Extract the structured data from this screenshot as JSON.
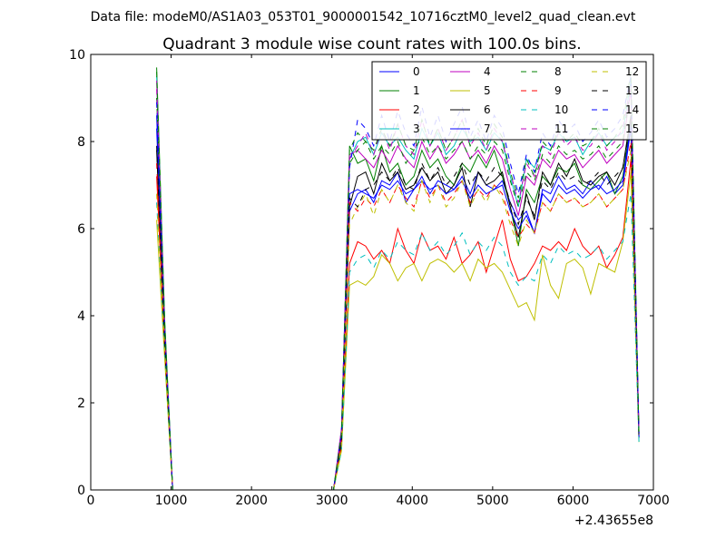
{
  "page": {
    "suptitle": "Data file: modeM0/AS1A03_053T01_9000001542_10716cztM0_level2_quad_clean.evt"
  },
  "chart_data": {
    "type": "line",
    "title": "Quadrant 3 module wise count rates with 100.0s bins.",
    "xlabel": "",
    "ylabel": "",
    "x_offset_label": "+2.43655e8",
    "xlim": [
      0,
      7000
    ],
    "ylim": [
      0,
      10
    ],
    "x_ticks": [
      0,
      1000,
      2000,
      3000,
      4000,
      5000,
      6000,
      7000
    ],
    "y_ticks": [
      0,
      2,
      4,
      6,
      8,
      10
    ],
    "grid": false,
    "legend": {
      "placement": "top-right",
      "columns": 4
    },
    "x": [
      820,
      920,
      1020,
      1120,
      1220,
      1320,
      1420,
      1520,
      1620,
      1720,
      1820,
      1920,
      2020,
      2120,
      2220,
      2320,
      2420,
      2520,
      2620,
      2720,
      2820,
      2920,
      3020,
      3120,
      3220,
      3320,
      3420,
      3520,
      3620,
      3720,
      3820,
      3920,
      4020,
      4120,
      4220,
      4320,
      4420,
      4520,
      4620,
      4720,
      4820,
      4920,
      5020,
      5120,
      5220,
      5320,
      5420,
      5520,
      5620,
      5720,
      5820,
      5920,
      6020,
      6120,
      6220,
      6320,
      6420,
      6520,
      6620,
      6720,
      6820
    ],
    "series": [
      {
        "name": "0",
        "color": "#0000ff",
        "dash": "solid",
        "values": [
          8.3,
          3.5,
          0,
          0,
          0,
          0,
          0,
          0,
          0,
          0,
          0,
          0,
          0,
          0,
          0,
          0,
          0,
          0,
          0,
          0,
          0,
          0,
          0,
          1.2,
          6.4,
          6.8,
          6.9,
          6.6,
          7.1,
          7.0,
          7.3,
          6.6,
          6.9,
          7.2,
          6.8,
          7.1,
          7.0,
          6.9,
          7.2,
          6.8,
          7.3,
          7.0,
          6.9,
          7.1,
          6.6,
          6.2,
          6.4,
          5.9,
          6.9,
          6.8,
          7.2,
          6.9,
          7.0,
          6.8,
          7.1,
          6.9,
          7.2,
          6.8,
          7.0,
          8.3,
          1.2
        ]
      },
      {
        "name": "1",
        "color": "#008000",
        "dash": "solid",
        "values": [
          9.7,
          3.9,
          0,
          0,
          0,
          0,
          0,
          0,
          0,
          0,
          0,
          0,
          0,
          0,
          0,
          0,
          0,
          0,
          0,
          0,
          0,
          0,
          0,
          1.3,
          7.9,
          7.5,
          7.6,
          7.1,
          7.9,
          7.3,
          7.5,
          7.0,
          7.2,
          7.8,
          7.4,
          7.6,
          7.2,
          7.0,
          7.5,
          7.3,
          7.7,
          7.4,
          7.8,
          7.2,
          6.5,
          5.6,
          6.9,
          6.6,
          7.2,
          7.0,
          7.4,
          7.3,
          7.5,
          7.0,
          6.9,
          7.1,
          7.3,
          6.8,
          7.2,
          8.5,
          1.3
        ]
      },
      {
        "name": "2",
        "color": "#ff0000",
        "dash": "solid",
        "values": [
          7.2,
          3.2,
          0,
          0,
          0,
          0,
          0,
          0,
          0,
          0,
          0,
          0,
          0,
          0,
          0,
          0,
          0,
          0,
          0,
          0,
          0,
          0,
          0,
          1.0,
          5.2,
          5.7,
          5.6,
          5.3,
          5.5,
          5.2,
          6.0,
          5.5,
          5.2,
          5.9,
          5.5,
          5.6,
          5.3,
          5.8,
          5.2,
          5.4,
          5.7,
          5.0,
          5.6,
          6.2,
          5.3,
          4.8,
          4.9,
          5.2,
          5.6,
          5.5,
          5.7,
          5.5,
          6.0,
          5.6,
          5.4,
          5.6,
          5.1,
          5.4,
          5.8,
          7.6,
          1.2
        ]
      },
      {
        "name": "3",
        "color": "#00bfbf",
        "dash": "solid",
        "values": [
          9.5,
          3.8,
          0,
          0,
          0,
          0,
          0,
          0,
          0,
          0,
          0,
          0,
          0,
          0,
          0,
          0,
          0,
          0,
          0,
          0,
          0,
          0,
          0,
          1.4,
          7.6,
          8.0,
          8.1,
          7.7,
          8.2,
          7.9,
          8.1,
          7.8,
          7.6,
          8.3,
          7.9,
          8.2,
          7.7,
          7.9,
          8.3,
          8.0,
          8.1,
          7.8,
          8.2,
          8.0,
          7.2,
          6.5,
          7.6,
          7.4,
          7.9,
          7.8,
          8.2,
          8.0,
          8.1,
          7.7,
          8.0,
          8.2,
          7.9,
          8.1,
          8.2,
          9.4,
          1.3
        ]
      },
      {
        "name": "4",
        "color": "#bf00bf",
        "dash": "solid",
        "values": [
          9.4,
          3.7,
          0,
          0,
          0,
          0,
          0,
          0,
          0,
          0,
          0,
          0,
          0,
          0,
          0,
          0,
          0,
          0,
          0,
          0,
          0,
          0,
          0,
          1.4,
          7.7,
          7.8,
          7.6,
          7.4,
          7.8,
          7.5,
          7.9,
          7.6,
          7.4,
          8.0,
          7.6,
          7.9,
          7.5,
          7.7,
          8.0,
          7.6,
          7.8,
          7.5,
          7.9,
          7.6,
          6.9,
          6.3,
          7.2,
          7.0,
          7.6,
          7.4,
          7.8,
          7.6,
          7.7,
          7.4,
          7.6,
          7.8,
          7.5,
          7.7,
          7.9,
          9.2,
          1.3
        ]
      },
      {
        "name": "5",
        "color": "#bfbf00",
        "dash": "solid",
        "values": [
          6.2,
          3.0,
          0,
          0,
          0,
          0,
          0,
          0,
          0,
          0,
          0,
          0,
          0,
          0,
          0,
          0,
          0,
          0,
          0,
          0,
          0,
          0,
          0,
          0.9,
          4.7,
          4.8,
          4.7,
          4.9,
          5.4,
          5.2,
          4.8,
          5.1,
          5.2,
          4.8,
          5.2,
          5.3,
          5.2,
          5.0,
          5.2,
          4.8,
          5.3,
          5.1,
          5.2,
          5.0,
          4.6,
          4.2,
          4.3,
          3.9,
          5.4,
          4.7,
          4.4,
          5.2,
          5.3,
          5.1,
          4.5,
          5.2,
          5.1,
          5.0,
          5.7,
          7.3,
          1.1
        ]
      },
      {
        "name": "6",
        "color": "#000000",
        "dash": "solid",
        "values": [
          7.8,
          3.3,
          0,
          0,
          0,
          0,
          0,
          0,
          0,
          0,
          0,
          0,
          0,
          0,
          0,
          0,
          0,
          0,
          0,
          0,
          0,
          0,
          0,
          1.1,
          6.5,
          7.2,
          7.3,
          6.8,
          7.5,
          7.1,
          7.3,
          6.9,
          7.0,
          7.4,
          7.1,
          7.3,
          6.8,
          7.0,
          7.4,
          6.5,
          7.3,
          7.0,
          7.1,
          7.3,
          6.5,
          5.8,
          6.8,
          6.2,
          7.3,
          7.0,
          7.5,
          7.2,
          7.6,
          7.1,
          7.0,
          7.2,
          7.3,
          7.0,
          7.4,
          8.6,
          1.2
        ]
      },
      {
        "name": "7",
        "color": "#0000ff",
        "dash": "solid",
        "values": [
          8.6,
          3.6,
          0,
          0,
          0,
          0,
          0,
          0,
          0,
          0,
          0,
          0,
          0,
          0,
          0,
          0,
          0,
          0,
          0,
          0,
          0,
          0,
          0,
          1.2,
          6.8,
          6.9,
          6.8,
          6.7,
          7.0,
          6.9,
          7.1,
          6.8,
          6.9,
          7.1,
          6.9,
          7.0,
          6.8,
          6.9,
          7.1,
          6.7,
          7.0,
          6.8,
          6.9,
          7.0,
          6.4,
          6.0,
          6.3,
          5.9,
          6.8,
          6.6,
          7.0,
          6.8,
          6.9,
          6.7,
          6.9,
          7.0,
          6.8,
          6.9,
          7.1,
          8.4,
          1.2
        ]
      },
      {
        "name": "8",
        "color": "#008000",
        "dash": "dashed",
        "values": [
          9.0,
          3.7,
          0,
          0,
          0,
          0,
          0,
          0,
          0,
          0,
          0,
          0,
          0,
          0,
          0,
          0,
          0,
          0,
          0,
          0,
          0,
          0,
          0,
          1.3,
          7.5,
          7.8,
          8.0,
          7.6,
          7.9,
          7.7,
          8.0,
          7.5,
          7.8,
          8.1,
          7.7,
          7.9,
          7.6,
          7.8,
          8.0,
          7.6,
          7.9,
          7.7,
          8.0,
          7.8,
          7.1,
          6.5,
          7.3,
          7.1,
          7.7,
          7.5,
          7.9,
          7.7,
          7.8,
          7.6,
          7.7,
          7.9,
          7.6,
          7.8,
          8.0,
          9.3,
          1.3
        ]
      },
      {
        "name": "9",
        "color": "#ff0000",
        "dash": "dashed",
        "values": [
          7.5,
          3.3,
          0,
          0,
          0,
          0,
          0,
          0,
          0,
          0,
          0,
          0,
          0,
          0,
          0,
          0,
          0,
          0,
          0,
          0,
          0,
          0,
          0,
          1.1,
          6.6,
          6.4,
          6.7,
          6.5,
          6.9,
          6.6,
          7.0,
          6.7,
          6.5,
          7.1,
          6.7,
          7.0,
          6.6,
          6.8,
          7.1,
          6.6,
          6.9,
          6.7,
          7.0,
          6.8,
          6.2,
          5.8,
          6.1,
          5.9,
          6.6,
          6.4,
          6.8,
          6.6,
          6.7,
          6.5,
          6.6,
          6.8,
          6.5,
          6.7,
          6.9,
          8.0,
          1.2
        ]
      },
      {
        "name": "10",
        "color": "#00bfbf",
        "dash": "dashed",
        "values": [
          6.6,
          3.1,
          0,
          0,
          0,
          0,
          0,
          0,
          0,
          0,
          0,
          0,
          0,
          0,
          0,
          0,
          0,
          0,
          0,
          0,
          0,
          0,
          0,
          0.9,
          5.0,
          5.3,
          5.4,
          5.1,
          5.5,
          5.3,
          5.7,
          5.5,
          5.4,
          5.9,
          5.5,
          5.7,
          5.4,
          5.6,
          5.9,
          5.4,
          5.7,
          5.5,
          5.8,
          5.6,
          5.0,
          4.7,
          4.9,
          4.8,
          5.4,
          5.2,
          5.6,
          5.4,
          5.5,
          5.3,
          5.4,
          5.6,
          5.3,
          5.5,
          5.7,
          6.8,
          1.1
        ]
      },
      {
        "name": "11",
        "color": "#bf00bf",
        "dash": "dashed",
        "values": [
          9.2,
          3.7,
          0,
          0,
          0,
          0,
          0,
          0,
          0,
          0,
          0,
          0,
          0,
          0,
          0,
          0,
          0,
          0,
          0,
          0,
          0,
          0,
          0,
          1.3,
          7.6,
          7.9,
          8.2,
          7.7,
          8.3,
          7.8,
          8.4,
          7.9,
          7.7,
          8.5,
          7.9,
          8.3,
          7.8,
          8.1,
          8.5,
          7.9,
          8.2,
          7.8,
          8.3,
          8.0,
          7.3,
          6.6,
          7.5,
          7.2,
          7.9,
          7.7,
          8.2,
          7.9,
          8.1,
          7.8,
          7.9,
          8.2,
          7.8,
          8.0,
          8.3,
          9.3,
          1.3
        ]
      },
      {
        "name": "12",
        "color": "#bfbf00",
        "dash": "dashed",
        "values": [
          6.8,
          3.2,
          0,
          0,
          0,
          0,
          0,
          0,
          0,
          0,
          0,
          0,
          0,
          0,
          0,
          0,
          0,
          0,
          0,
          0,
          0,
          0,
          0,
          1.0,
          6.1,
          6.5,
          6.8,
          6.3,
          6.9,
          6.6,
          7.0,
          6.6,
          6.4,
          7.1,
          6.6,
          7.0,
          6.5,
          6.7,
          7.1,
          6.5,
          6.9,
          6.6,
          7.0,
          6.7,
          6.1,
          5.6,
          6.2,
          5.9,
          6.6,
          6.4,
          6.8,
          6.6,
          6.7,
          6.5,
          6.6,
          6.8,
          6.5,
          6.7,
          6.9,
          7.8,
          1.2
        ]
      },
      {
        "name": "13",
        "color": "#000000",
        "dash": "dashed",
        "values": [
          7.9,
          3.4,
          0,
          0,
          0,
          0,
          0,
          0,
          0,
          0,
          0,
          0,
          0,
          0,
          0,
          0,
          0,
          0,
          0,
          0,
          0,
          0,
          0,
          1.2,
          6.7,
          6.5,
          6.9,
          7.0,
          7.3,
          7.1,
          7.4,
          7.0,
          6.9,
          7.5,
          7.1,
          7.4,
          7.0,
          7.2,
          7.5,
          7.0,
          7.3,
          7.1,
          7.4,
          7.2,
          6.6,
          6.1,
          6.7,
          6.3,
          7.1,
          6.9,
          7.3,
          7.1,
          7.2,
          7.0,
          7.1,
          7.3,
          7.0,
          7.2,
          7.4,
          8.5,
          1.2
        ]
      },
      {
        "name": "14",
        "color": "#0000ff",
        "dash": "dashed",
        "values": [
          8.9,
          3.7,
          0,
          0,
          0,
          0,
          0,
          0,
          0,
          0,
          0,
          0,
          0,
          0,
          0,
          0,
          0,
          0,
          0,
          0,
          0,
          0,
          0,
          1.3,
          7.4,
          8.5,
          8.3,
          7.9,
          8.6,
          8.0,
          8.7,
          8.2,
          7.9,
          8.8,
          8.1,
          8.6,
          8.0,
          8.4,
          8.8,
          8.1,
          8.5,
          8.0,
          8.6,
          8.3,
          7.5,
          6.8,
          7.7,
          7.3,
          8.2,
          7.9,
          8.5,
          8.2,
          8.4,
          8.0,
          8.2,
          8.5,
          8.1,
          8.3,
          8.6,
          9.5,
          1.3
        ]
      },
      {
        "name": "15",
        "color": "#008000",
        "dash": "dashed",
        "values": [
          9.6,
          3.8,
          0,
          0,
          0,
          0,
          0,
          0,
          0,
          0,
          0,
          0,
          0,
          0,
          0,
          0,
          0,
          0,
          0,
          0,
          0,
          0,
          0,
          1.3,
          7.8,
          8.2,
          8.0,
          7.8,
          8.3,
          7.9,
          8.4,
          7.9,
          7.8,
          8.5,
          7.9,
          8.3,
          7.8,
          8.1,
          8.5,
          7.9,
          8.3,
          7.9,
          8.4,
          8.1,
          7.3,
          6.7,
          7.6,
          7.2,
          8.0,
          7.8,
          8.3,
          8.0,
          8.2,
          7.9,
          8.0,
          8.3,
          7.9,
          8.1,
          8.4,
          9.6,
          1.3
        ]
      }
    ]
  }
}
